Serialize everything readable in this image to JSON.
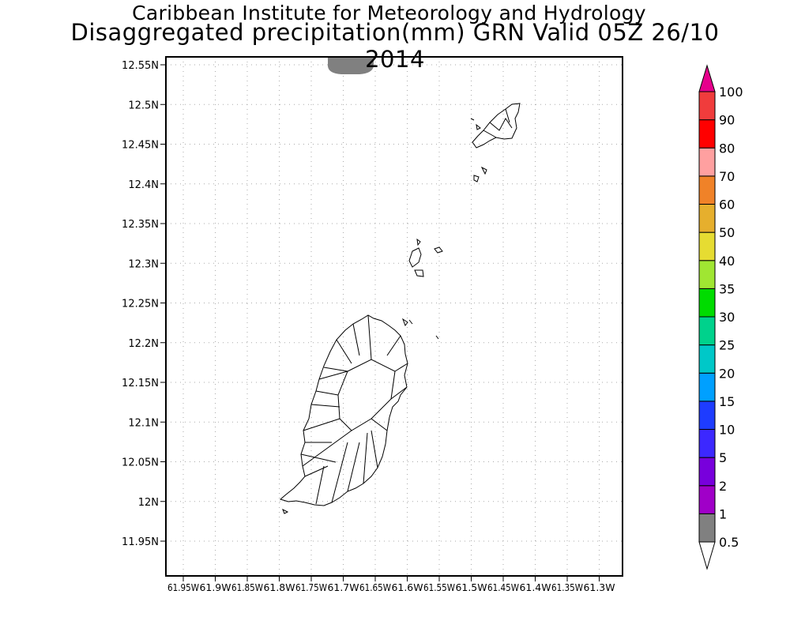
{
  "title": {
    "line1": "Caribbean Institute for Meteorology and Hydrology",
    "line2": "Disaggregated precipitation(mm) GRN Valid 05Z 26/10 2014"
  },
  "map": {
    "lat_labels": [
      "12.55N",
      "12.5N",
      "12.45N",
      "12.4N",
      "12.35N",
      "12.3N",
      "12.25N",
      "12.2N",
      "12.15N",
      "12.1N",
      "12.05N",
      "12N",
      "11.95N"
    ],
    "lon_labels": [
      "61.95W",
      "61.9W",
      "61.85W",
      "61.8W",
      "61.75W",
      "61.7W",
      "61.65W",
      "61.6W",
      "61.55W",
      "61.5W",
      "61.45W",
      "61.4W",
      "61.35W",
      "61.3W"
    ],
    "grid": true,
    "precip_area_color": "#808080"
  },
  "colorbar": {
    "levels": [
      "0.5",
      "1",
      "2",
      "5",
      "10",
      "15",
      "20",
      "25",
      "30",
      "35",
      "40",
      "50",
      "60",
      "70",
      "80",
      "90",
      "100"
    ],
    "colors": [
      "#808080",
      "#a000c8",
      "#7800dc",
      "#3c28ff",
      "#1e3cff",
      "#00a0ff",
      "#00c8c8",
      "#00d28c",
      "#00dc00",
      "#a0e632",
      "#e6dc32",
      "#e6af2d",
      "#f08228",
      "#ffa0a0",
      "#ff0000",
      "#f03c3c"
    ],
    "over_color": "#e6008c",
    "under_color": "#ffffff"
  }
}
